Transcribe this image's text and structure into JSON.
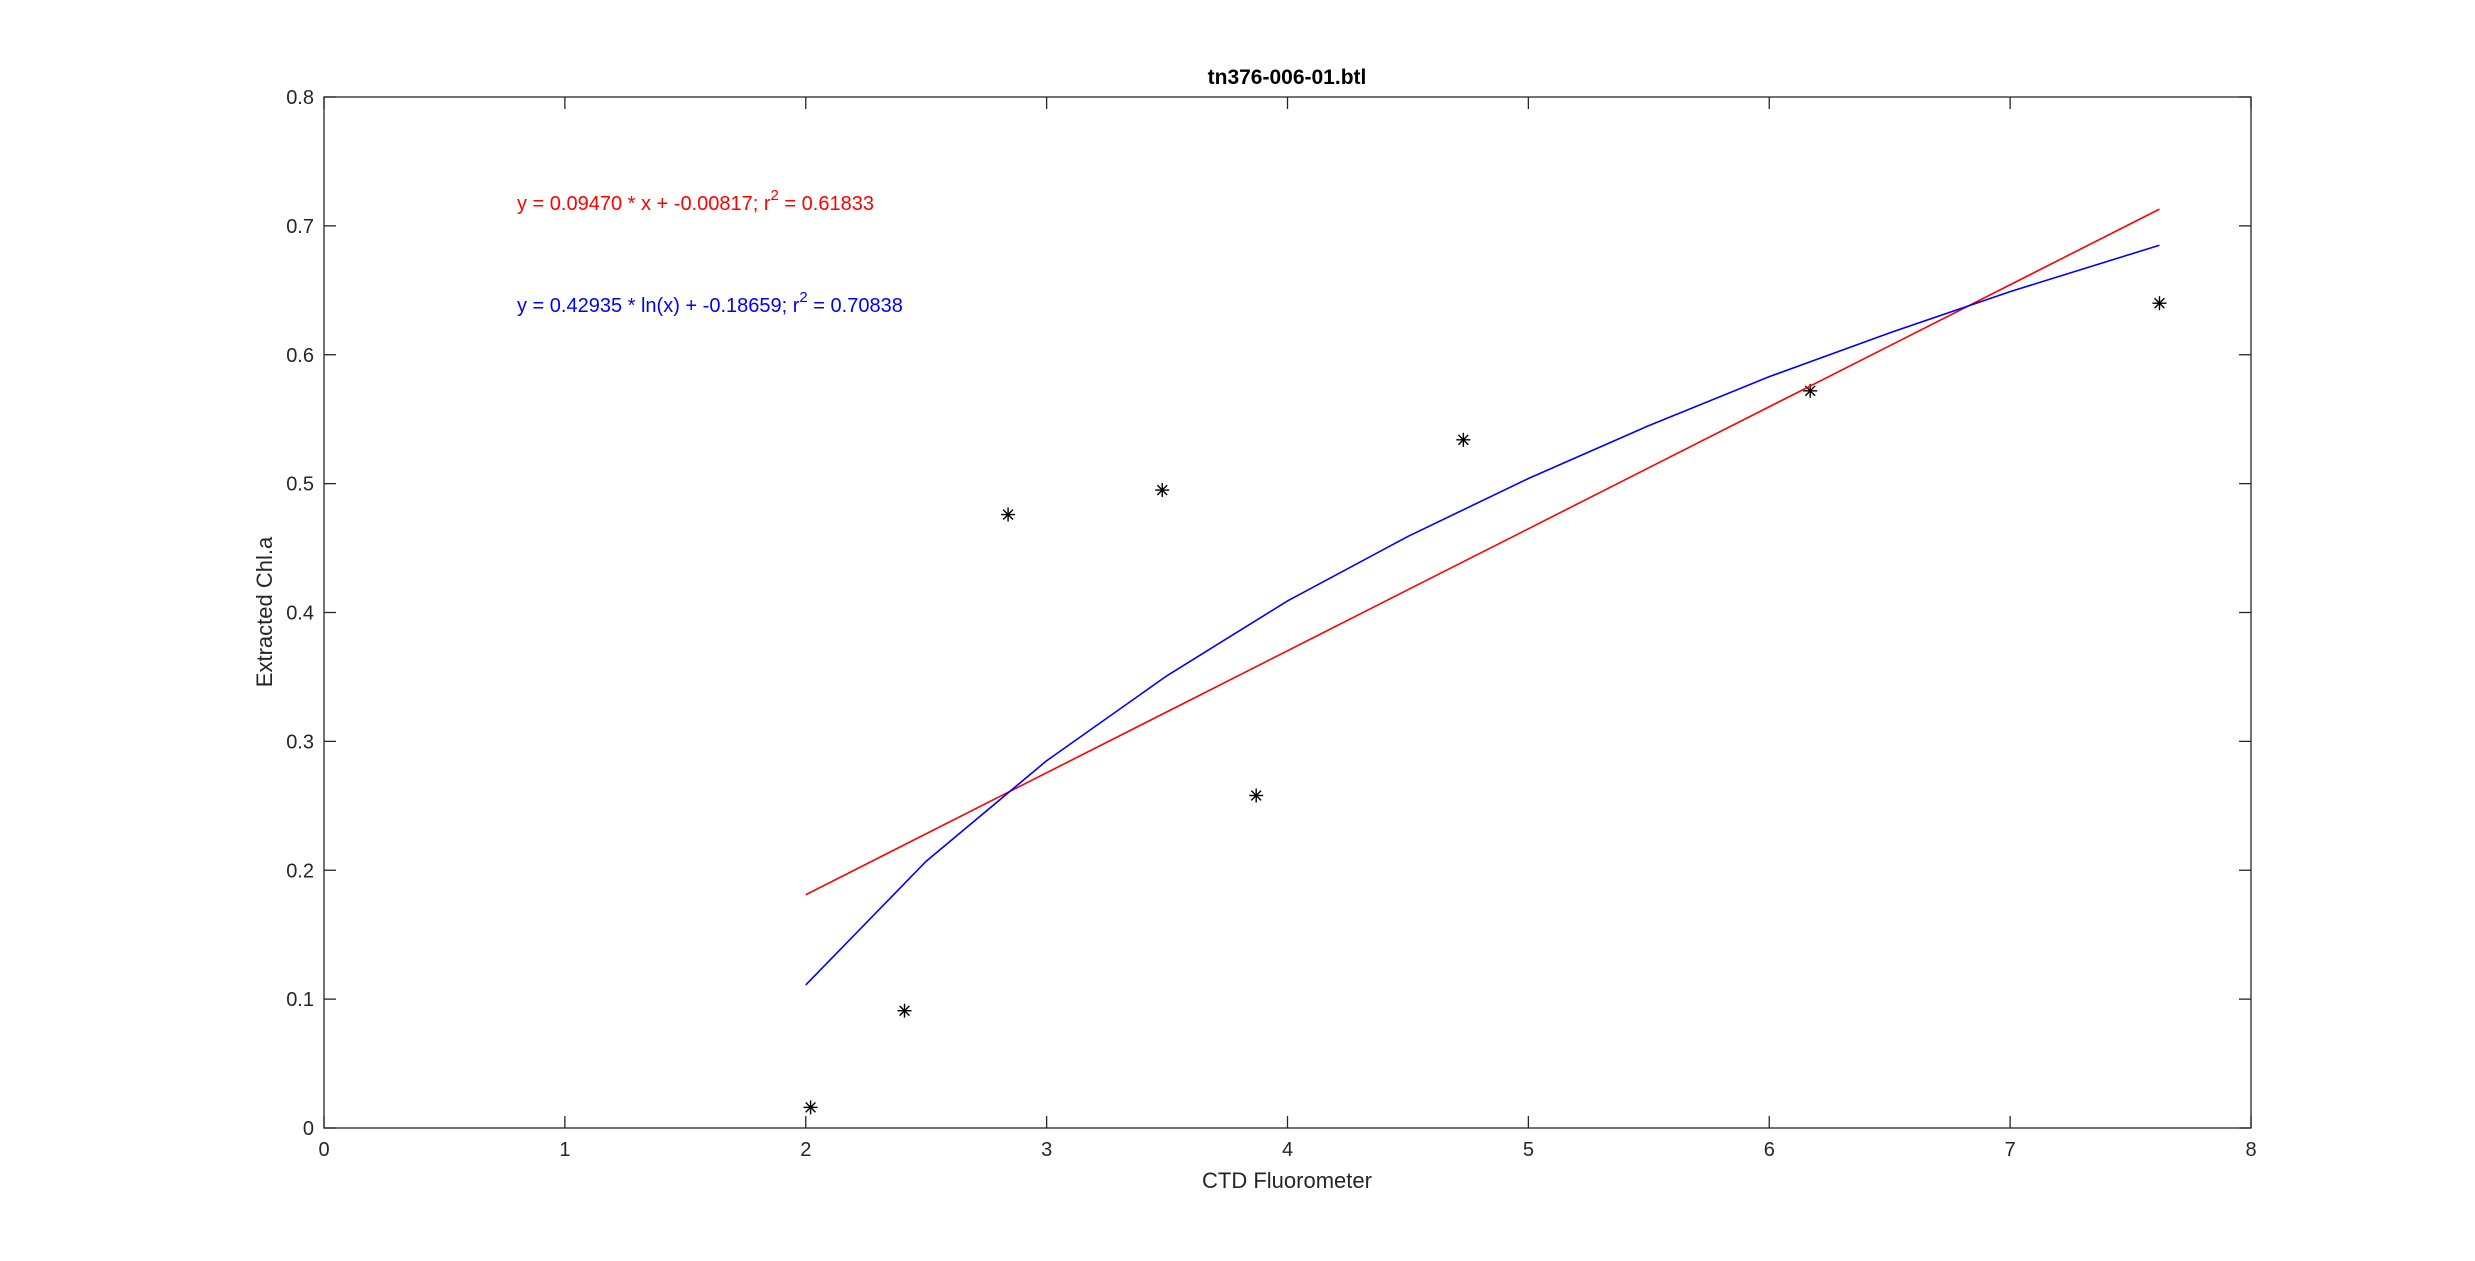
{
  "chart_data": {
    "type": "scatter",
    "title": "tn376-006-01.btl",
    "x_label": "CTD Fluorometer",
    "y_label": "Extracted Chl.a",
    "xlim": [
      0,
      8
    ],
    "ylim": [
      0,
      0.8
    ],
    "xticks": [
      0,
      1,
      2,
      3,
      4,
      5,
      6,
      7,
      8
    ],
    "yticks": [
      0,
      0.1,
      0.2,
      0.3,
      0.4,
      0.5,
      0.6,
      0.7,
      0.8
    ],
    "series": [
      {
        "kind": "points",
        "color": "#000000",
        "x": [
          2.02,
          2.41,
          2.84,
          3.48,
          3.87,
          4.73,
          6.17,
          7.62
        ],
        "values": [
          0.016,
          0.091,
          0.476,
          0.495,
          0.258,
          0.534,
          0.572,
          0.64
        ]
      },
      {
        "kind": "line",
        "color": "#ff0000",
        "x": [
          2,
          7.62
        ],
        "values": [
          0.181,
          0.713
        ]
      },
      {
        "kind": "line",
        "color": "#0000ff",
        "x": [
          2,
          2.5,
          3,
          3.5,
          4,
          4.5,
          5,
          5.5,
          6,
          6.5,
          7,
          7.62
        ],
        "values": [
          0.111,
          0.207,
          0.285,
          0.351,
          0.409,
          0.459,
          0.504,
          0.545,
          0.583,
          0.617,
          0.649,
          0.685
        ]
      }
    ],
    "annotations": [
      {
        "text": "y = 0.09470 * x + -0.00817; r",
        "sup": "2",
        "tail": " = 0.61833",
        "color": "#ff0000"
      },
      {
        "text": "y = 0.42935 * ln(x) + -0.18659; r",
        "sup": "2",
        "tail": " = 0.70838",
        "color": "#0000ff"
      }
    ]
  }
}
